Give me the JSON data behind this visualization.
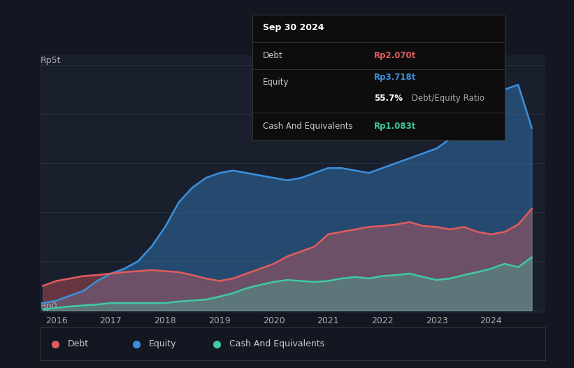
{
  "bg_color": "#131722",
  "plot_area_bg": "#1a1f2e",
  "grid_color": "#2a2f3e",
  "title_text": "Sep 30 2024",
  "tooltip_bg": "#0d0d0d",
  "debt_color": "#e05c5c",
  "equity_color": "#3b8fdb",
  "cash_color": "#40c9a2",
  "debt_label": "Debt",
  "equity_label": "Equity",
  "cash_label": "Cash And Equivalents",
  "debt_value": "Rp2.070t",
  "equity_value": "Rp3.718t",
  "ratio_pct": "55.7%",
  "ratio_label": " Debt/Equity Ratio",
  "cash_value": "Rp1.083t",
  "y_label_top": "Rp5t",
  "y_label_bottom": "Rp0",
  "x_ticks": [
    2016,
    2017,
    2018,
    2019,
    2020,
    2021,
    2022,
    2023,
    2024
  ],
  "x_min": 2015.7,
  "x_max": 2025.0,
  "y_min": -0.05,
  "y_max": 5.2,
  "equity_x": [
    2015.75,
    2016.0,
    2016.25,
    2016.5,
    2016.75,
    2017.0,
    2017.25,
    2017.5,
    2017.75,
    2018.0,
    2018.25,
    2018.5,
    2018.75,
    2019.0,
    2019.25,
    2019.5,
    2019.75,
    2020.0,
    2020.25,
    2020.5,
    2020.75,
    2021.0,
    2021.25,
    2021.5,
    2021.75,
    2022.0,
    2022.25,
    2022.5,
    2022.75,
    2023.0,
    2023.25,
    2023.5,
    2023.75,
    2024.0,
    2024.25,
    2024.5,
    2024.75
  ],
  "equity_y": [
    0.15,
    0.2,
    0.3,
    0.4,
    0.6,
    0.75,
    0.85,
    1.0,
    1.3,
    1.7,
    2.2,
    2.5,
    2.7,
    2.8,
    2.85,
    2.8,
    2.75,
    2.7,
    2.65,
    2.7,
    2.8,
    2.9,
    2.9,
    2.85,
    2.8,
    2.9,
    3.0,
    3.1,
    3.2,
    3.3,
    3.5,
    3.7,
    3.9,
    4.1,
    4.5,
    4.6,
    3.72
  ],
  "debt_x": [
    2015.75,
    2016.0,
    2016.25,
    2016.5,
    2016.75,
    2017.0,
    2017.25,
    2017.5,
    2017.75,
    2018.0,
    2018.25,
    2018.5,
    2018.75,
    2019.0,
    2019.25,
    2019.5,
    2019.75,
    2020.0,
    2020.25,
    2020.5,
    2020.75,
    2021.0,
    2021.25,
    2021.5,
    2021.75,
    2022.0,
    2022.25,
    2022.5,
    2022.75,
    2023.0,
    2023.25,
    2023.5,
    2023.75,
    2024.0,
    2024.25,
    2024.5,
    2024.75
  ],
  "debt_y": [
    0.5,
    0.6,
    0.65,
    0.7,
    0.72,
    0.75,
    0.78,
    0.8,
    0.82,
    0.8,
    0.78,
    0.72,
    0.65,
    0.6,
    0.65,
    0.75,
    0.85,
    0.95,
    1.1,
    1.2,
    1.3,
    1.55,
    1.6,
    1.65,
    1.7,
    1.72,
    1.75,
    1.8,
    1.72,
    1.7,
    1.65,
    1.7,
    1.6,
    1.55,
    1.6,
    1.75,
    2.07
  ],
  "cash_x": [
    2015.75,
    2016.0,
    2016.25,
    2016.5,
    2016.75,
    2017.0,
    2017.25,
    2017.5,
    2017.75,
    2018.0,
    2018.25,
    2018.5,
    2018.75,
    2019.0,
    2019.25,
    2019.5,
    2019.75,
    2020.0,
    2020.25,
    2020.5,
    2020.75,
    2021.0,
    2021.25,
    2021.5,
    2021.75,
    2022.0,
    2022.25,
    2022.5,
    2022.75,
    2023.0,
    2023.25,
    2023.5,
    2023.75,
    2024.0,
    2024.25,
    2024.5,
    2024.75
  ],
  "cash_y": [
    0.02,
    0.05,
    0.08,
    0.1,
    0.12,
    0.15,
    0.15,
    0.15,
    0.15,
    0.15,
    0.18,
    0.2,
    0.22,
    0.28,
    0.35,
    0.45,
    0.52,
    0.58,
    0.62,
    0.6,
    0.58,
    0.6,
    0.65,
    0.68,
    0.65,
    0.7,
    0.72,
    0.75,
    0.68,
    0.62,
    0.65,
    0.72,
    0.78,
    0.85,
    0.95,
    0.88,
    1.083
  ]
}
